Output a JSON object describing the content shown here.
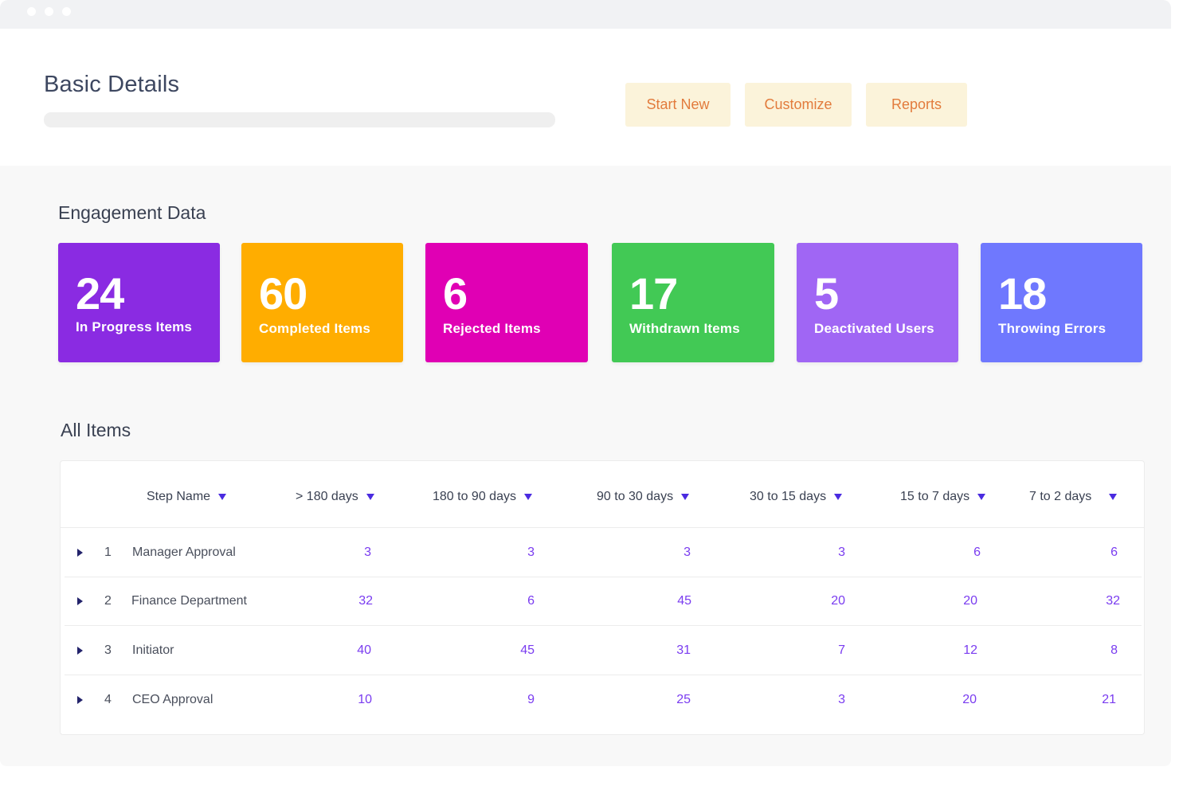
{
  "header": {
    "title": "Basic Details",
    "buttons": {
      "start_new": "Start New",
      "customize": "Customize",
      "reports": "Reports"
    },
    "accent_bg": "#fbf3da",
    "accent_text": "#e27b3c"
  },
  "engagement": {
    "title": "Engagement Data",
    "cards": [
      {
        "value": "24",
        "label": "In Progress Items",
        "color": "#8a2be2"
      },
      {
        "value": "60",
        "label": "Completed Items",
        "color": "#ffad00"
      },
      {
        "value": "6",
        "label": "Rejected Items",
        "color": "#e000b4"
      },
      {
        "value": "17",
        "label": "Withdrawn Items",
        "color": "#42c955"
      },
      {
        "value": "5",
        "label": "Deactivated Users",
        "color": "#a066f4"
      },
      {
        "value": "18",
        "label": "Throwing Errors",
        "color": "#6f78fe"
      }
    ]
  },
  "items": {
    "title": "All Items",
    "columns": [
      "Step Name",
      "> 180 days",
      "180 to 90 days",
      "90 to 30 days",
      "30 to 15 days",
      "15 to 7 days",
      "7 to 2 days"
    ],
    "rows": [
      {
        "index": "1",
        "step": "Manager Approval",
        "values": [
          "3",
          "3",
          "3",
          "3",
          "6",
          "6"
        ]
      },
      {
        "index": "2",
        "step": "Finance Department",
        "values": [
          "32",
          "6",
          "45",
          "20",
          "20",
          "32"
        ]
      },
      {
        "index": "3",
        "step": "Initiator",
        "values": [
          "40",
          "45",
          "31",
          "7",
          "12",
          "8"
        ]
      },
      {
        "index": "4",
        "step": "CEO Approval",
        "values": [
          "10",
          "9",
          "25",
          "3",
          "20",
          "21"
        ]
      }
    ]
  }
}
